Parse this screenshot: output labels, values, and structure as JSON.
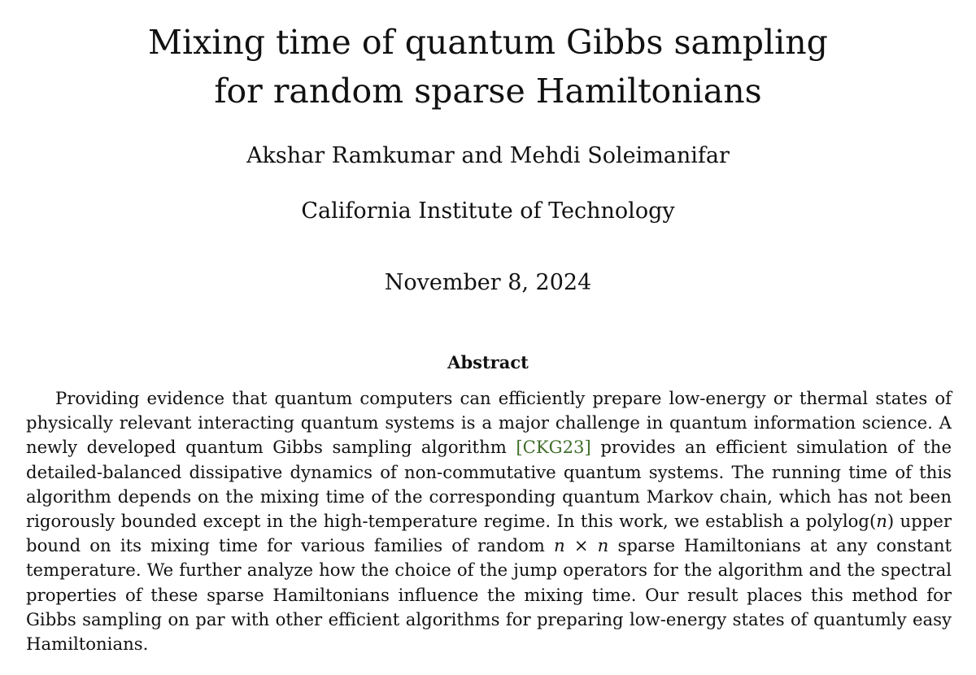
{
  "title_lines": [
    "Mixing time of quantum Gibbs sampling",
    "for random sparse Hamiltonians"
  ],
  "authors": "Akshar Ramkumar and Mehdi Soleimanifar",
  "affiliation": "California Institute of Technology",
  "date": "November 8, 2024",
  "abstract": {
    "heading": "Abstract",
    "seg1": "Providing evidence that quantum computers can efficiently prepare low-energy or thermal states of physically relevant interacting quantum systems is a major challenge in quantum information science. A newly developed quantum Gibbs sampling algorithm ",
    "citation": "[CKG23]",
    "seg2": " provides an efficient simulation of the detailed-balanced dissipative dynamics of non-commutative quantum systems. The running time of this algorithm depends on the mixing time of the corresponding quantum Markov chain, which has not been rigorously bounded except in the high-temperature regime. In this work, we establish a polylog(",
    "math_n1": "n",
    "seg3": ") upper bound on its mixing time for various families of random ",
    "math_nxn": "n × n",
    "seg4": " sparse Hamiltonians at any constant temperature. We further analyze how the choice of the jump operators for the algorithm and the spectral properties of these sparse Hamiltonians influence the mixing time. Our result places this method for Gibbs sampling on par with other efficient algorithms for preparing low-energy states of quantumly easy Hamiltonians."
  },
  "colors": {
    "citation": "#3f6e2a",
    "text": "#111111",
    "background": "#ffffff"
  }
}
